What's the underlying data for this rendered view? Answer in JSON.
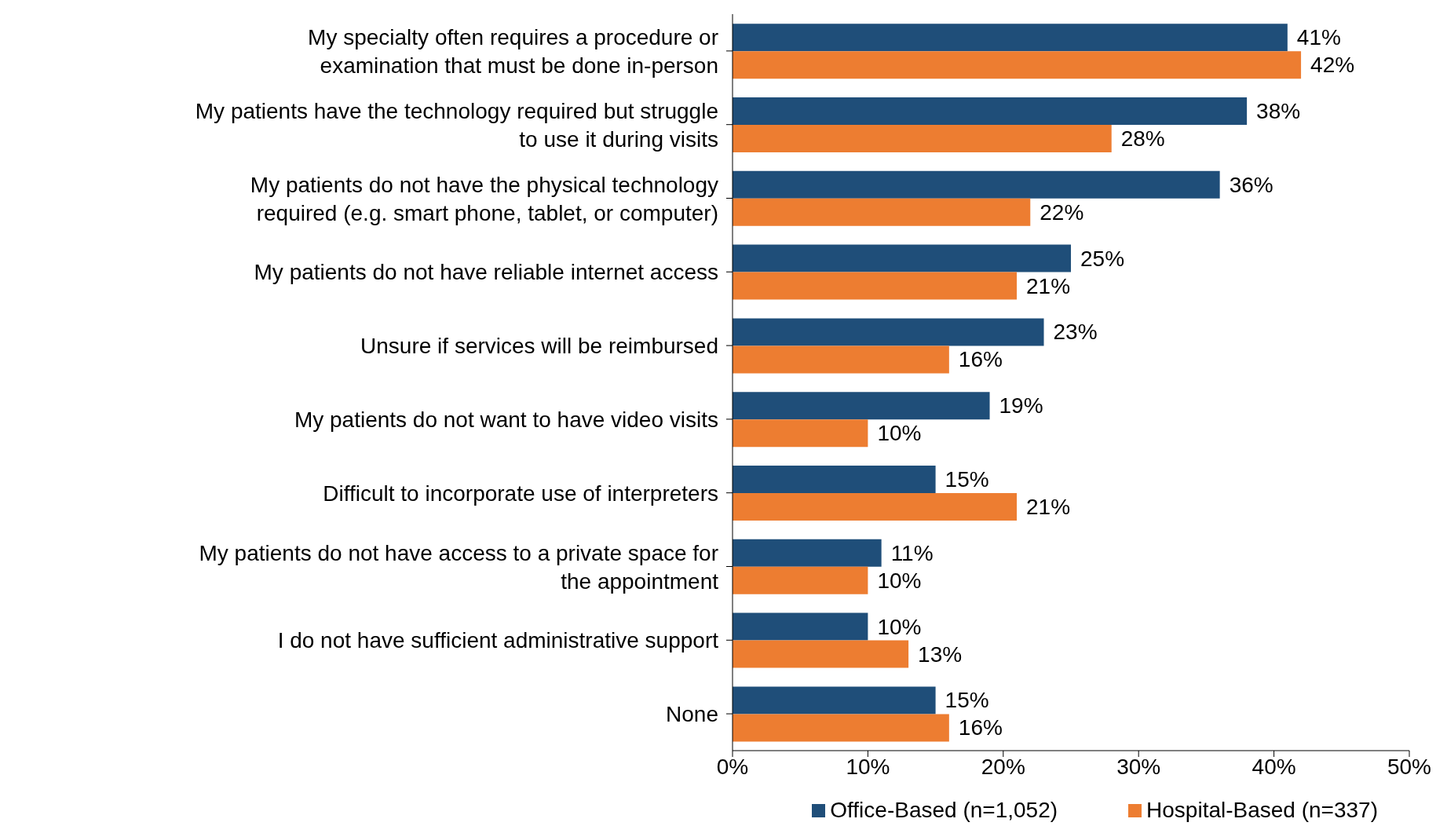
{
  "chart_data": {
    "type": "bar",
    "orientation": "horizontal",
    "categories": [
      "My specialty often requires a procedure or examination that must be done in-person",
      "My patients have the technology required but struggle to use it during visits",
      "My patients do not have the physical technology required (e.g. smart phone, tablet, or computer)",
      "My patients do not have reliable internet access",
      "Unsure if services will be reimbursed",
      "My patients do not want to have video visits",
      "Difficult to incorporate use of interpreters",
      "My patients do not have access to a private space for the appointment",
      "I do not have sufficient administrative support",
      "None"
    ],
    "series": [
      {
        "name": "Office-Based (n=1,052)",
        "color": "#1f4e79",
        "values": [
          41,
          38,
          36,
          25,
          23,
          19,
          15,
          11,
          10,
          15
        ],
        "value_labels": [
          "41%",
          "38%",
          "36%",
          "25%",
          "23%",
          "19%",
          "15%",
          "11%",
          "10%",
          "15%"
        ]
      },
      {
        "name": "Hospital-Based (n=337)",
        "color": "#ed7d31",
        "values": [
          42,
          28,
          22,
          21,
          16,
          10,
          21,
          10,
          13,
          16
        ],
        "value_labels": [
          "42%",
          "28%",
          "22%",
          "21%",
          "16%",
          "10%",
          "21%",
          "10%",
          "13%",
          "16%"
        ]
      }
    ],
    "xlim": [
      0,
      50
    ],
    "xticks": [
      {
        "value": 0,
        "label": "0%"
      },
      {
        "value": 10,
        "label": "10%"
      },
      {
        "value": 20,
        "label": "20%"
      },
      {
        "value": 30,
        "label": "30%"
      },
      {
        "value": 40,
        "label": "40%"
      },
      {
        "value": 50,
        "label": "50%"
      }
    ],
    "grid": false,
    "legend": "bottom"
  }
}
